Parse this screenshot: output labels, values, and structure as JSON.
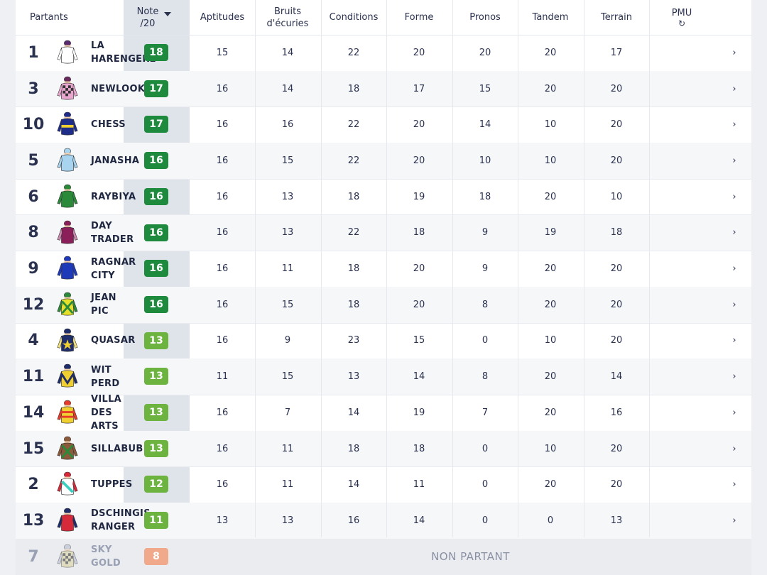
{
  "columns": {
    "partants": "Partants",
    "note_line1": "Note",
    "note_line2": "/20",
    "aptitudes": "Aptitudes",
    "bruits_line1": "Bruits",
    "bruits_line2": "d'écuries",
    "conditions": "Conditions",
    "forme": "Forme",
    "pronos": "Pronos",
    "tandem": "Tandem",
    "terrain": "Terrain",
    "pmu": "PMU",
    "pmu_icon": "refresh-icon",
    "sort_icon": "caret-down-icon"
  },
  "badge_colors": {
    "high": "#1e8a3e",
    "mid": "#6cb33f",
    "low": "#f0a98a"
  },
  "runners": [
    {
      "num": "1",
      "name": "LA\nHARENGERE",
      "note": "18",
      "level": "high",
      "aptitudes": "15",
      "bruits": "14",
      "conditions": "22",
      "forme": "20",
      "pronos": "20",
      "tandem": "20",
      "terrain": "17",
      "silk": {
        "body": "#ffffff",
        "sleeve": "#ffffff",
        "cap": "#5a2a6e",
        "pattern": "plain"
      }
    },
    {
      "num": "3",
      "name": "NEWLOOK",
      "note": "17",
      "level": "high",
      "aptitudes": "16",
      "bruits": "14",
      "conditions": "18",
      "forme": "17",
      "pronos": "15",
      "tandem": "20",
      "terrain": "20",
      "silk": {
        "body": "#e8a6cf",
        "sleeve": "#e8a6cf",
        "cap": "#6a2a5e",
        "pattern": "check"
      }
    },
    {
      "num": "10",
      "name": "CHESS",
      "note": "17",
      "level": "high",
      "aptitudes": "16",
      "bruits": "16",
      "conditions": "22",
      "forme": "20",
      "pronos": "14",
      "tandem": "10",
      "terrain": "20",
      "silk": {
        "body": "#1f2d8a",
        "sleeve": "#1f2d8a",
        "cap": "#1f2d8a",
        "pattern": "band"
      }
    },
    {
      "num": "5",
      "name": "JANASHA",
      "note": "16",
      "level": "high",
      "aptitudes": "16",
      "bruits": "15",
      "conditions": "22",
      "forme": "20",
      "pronos": "10",
      "tandem": "10",
      "terrain": "20",
      "silk": {
        "body": "#a8d4f0",
        "sleeve": "#a8d4f0",
        "cap": "#a8d4f0",
        "pattern": "plain"
      }
    },
    {
      "num": "6",
      "name": "RAYBIYA",
      "note": "16",
      "level": "high",
      "aptitudes": "16",
      "bruits": "13",
      "conditions": "18",
      "forme": "19",
      "pronos": "18",
      "tandem": "20",
      "terrain": "10",
      "silk": {
        "body": "#2a8a3a",
        "sleeve": "#2a8a3a",
        "cap": "#2a8a3a",
        "pattern": "plain"
      }
    },
    {
      "num": "8",
      "name": "DAY\nTRADER",
      "note": "16",
      "level": "high",
      "aptitudes": "16",
      "bruits": "13",
      "conditions": "22",
      "forme": "18",
      "pronos": "9",
      "tandem": "19",
      "terrain": "18",
      "silk": {
        "body": "#8a1f5a",
        "sleeve": "#c98ab0",
        "cap": "#8a1f5a",
        "pattern": "plain"
      }
    },
    {
      "num": "9",
      "name": "RAGNAR\nCITY",
      "note": "16",
      "level": "high",
      "aptitudes": "16",
      "bruits": "11",
      "conditions": "18",
      "forme": "20",
      "pronos": "9",
      "tandem": "20",
      "terrain": "20",
      "silk": {
        "body": "#1f3ab8",
        "sleeve": "#1f3ab8",
        "cap": "#1f3ab8",
        "pattern": "plain"
      }
    },
    {
      "num": "12",
      "name": "JEAN\nPIC",
      "note": "16",
      "level": "high",
      "aptitudes": "16",
      "bruits": "15",
      "conditions": "18",
      "forme": "20",
      "pronos": "8",
      "tandem": "20",
      "terrain": "20",
      "silk": {
        "body": "#e6e02a",
        "sleeve": "#2a8a3a",
        "cap": "#2a8a3a",
        "pattern": "cross"
      }
    },
    {
      "num": "4",
      "name": "QUASAR",
      "note": "13",
      "level": "mid",
      "aptitudes": "16",
      "bruits": "9",
      "conditions": "23",
      "forme": "15",
      "pronos": "0",
      "tandem": "10",
      "terrain": "20",
      "silk": {
        "body": "#1f2d6a",
        "sleeve": "#f0e07a",
        "cap": "#1f2d6a",
        "pattern": "star"
      }
    },
    {
      "num": "11",
      "name": "WIT\nPERD",
      "note": "13",
      "level": "mid",
      "aptitudes": "11",
      "bruits": "15",
      "conditions": "13",
      "forme": "14",
      "pronos": "8",
      "tandem": "20",
      "terrain": "14",
      "silk": {
        "body": "#f0d030",
        "sleeve": "#1f2d6a",
        "cap": "#1f2d6a",
        "pattern": "chevron"
      }
    },
    {
      "num": "14",
      "name": "VILLA\nDES\nARTS",
      "note": "13",
      "level": "mid",
      "aptitudes": "16",
      "bruits": "7",
      "conditions": "14",
      "forme": "19",
      "pronos": "7",
      "tandem": "20",
      "terrain": "16",
      "silk": {
        "body": "#f0d030",
        "sleeve": "#e63a2a",
        "cap": "#e63a2a",
        "pattern": "hoops"
      }
    },
    {
      "num": "15",
      "name": "SILLABUB",
      "note": "13",
      "level": "mid",
      "aptitudes": "16",
      "bruits": "11",
      "conditions": "18",
      "forme": "18",
      "pronos": "0",
      "tandem": "10",
      "terrain": "20",
      "silk": {
        "body": "#8a5a3a",
        "sleeve": "#8a5a3a",
        "cap": "#8a5a3a",
        "pattern": "cross"
      }
    },
    {
      "num": "2",
      "name": "TUPPES",
      "note": "12",
      "level": "mid",
      "aptitudes": "16",
      "bruits": "11",
      "conditions": "14",
      "forme": "11",
      "pronos": "0",
      "tandem": "20",
      "terrain": "20",
      "silk": {
        "body": "#ffffff",
        "sleeve": "#d62a3a",
        "cap": "#d62a3a",
        "pattern": "sash"
      }
    },
    {
      "num": "13",
      "name": "DSCHINGIS\nRANGER",
      "note": "11",
      "level": "mid",
      "aptitudes": "13",
      "bruits": "13",
      "conditions": "16",
      "forme": "14",
      "pronos": "0",
      "tandem": "0",
      "terrain": "13",
      "silk": {
        "body": "#d62a3a",
        "sleeve": "#1f2d6a",
        "cap": "#1f2d6a",
        "pattern": "plain"
      }
    },
    {
      "num": "7",
      "name": "SKY\nGOLD",
      "note": "8",
      "level": "low",
      "non_partant": "NON PARTANT",
      "silk": {
        "body": "#d8d2a0",
        "sleeve": "#b8bdd0",
        "cap": "#b8bdd0",
        "pattern": "check"
      }
    }
  ]
}
